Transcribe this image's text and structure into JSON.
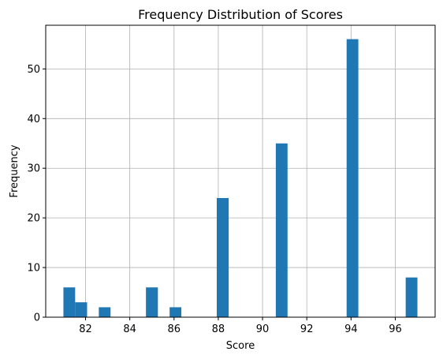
{
  "chart_data": {
    "type": "bar",
    "title": "Frequency Distribution of Scores",
    "xlabel": "Score",
    "ylabel": "Frequency",
    "xlim": [
      80.2,
      97.8
    ],
    "ylim": [
      0,
      58.8
    ],
    "x_ticks": [
      82,
      84,
      86,
      88,
      90,
      92,
      94,
      96
    ],
    "y_ticks": [
      0,
      10,
      20,
      30,
      40,
      50
    ],
    "grid": true,
    "bar_color": "#1f77b4",
    "bars": [
      {
        "x_start": 81.0,
        "x_end": 81.53,
        "value": 6
      },
      {
        "x_start": 81.53,
        "x_end": 82.07,
        "value": 3
      },
      {
        "x_start": 82.6,
        "x_end": 83.13,
        "value": 2
      },
      {
        "x_start": 84.73,
        "x_end": 85.27,
        "value": 6
      },
      {
        "x_start": 85.8,
        "x_end": 86.33,
        "value": 2
      },
      {
        "x_start": 87.93,
        "x_end": 88.47,
        "value": 24
      },
      {
        "x_start": 90.6,
        "x_end": 91.13,
        "value": 35
      },
      {
        "x_start": 93.8,
        "x_end": 94.33,
        "value": 56
      },
      {
        "x_start": 96.47,
        "x_end": 97.0,
        "value": 8
      }
    ]
  }
}
